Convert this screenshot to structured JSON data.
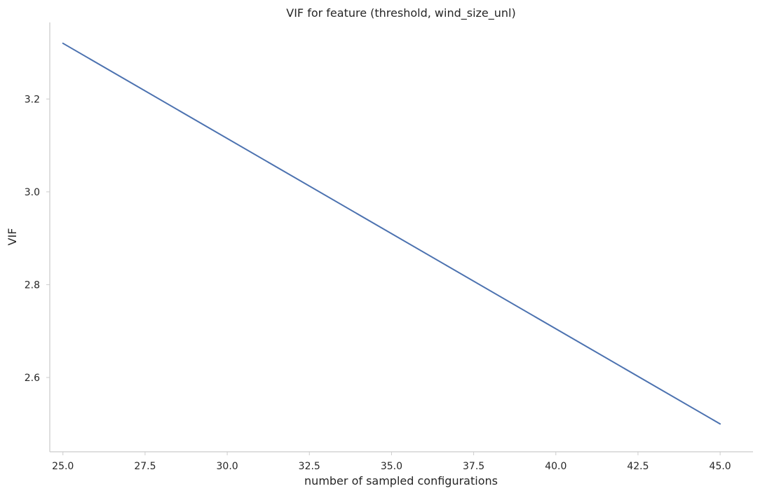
{
  "chart_data": {
    "type": "line",
    "title": "VIF for feature (threshold, wind_size_unl)",
    "xlabel": "number of sampled configurations",
    "ylabel": "VIF",
    "xlim": [
      24.6,
      46.0
    ],
    "ylim": [
      2.44,
      3.365
    ],
    "x_ticks": [
      "25.0",
      "27.5",
      "30.0",
      "32.5",
      "35.0",
      "37.5",
      "40.0",
      "42.5",
      "45.0"
    ],
    "y_ticks": [
      "2.6",
      "2.8",
      "3.0",
      "3.2"
    ],
    "grid": false,
    "legend": "none",
    "series": [
      {
        "color": "#4c72b0",
        "x": [
          25,
          45
        ],
        "y": [
          3.32,
          2.5
        ]
      }
    ],
    "colors": {
      "axis": "#cccccc",
      "text": "#262626",
      "line": "#4c72b0"
    }
  }
}
